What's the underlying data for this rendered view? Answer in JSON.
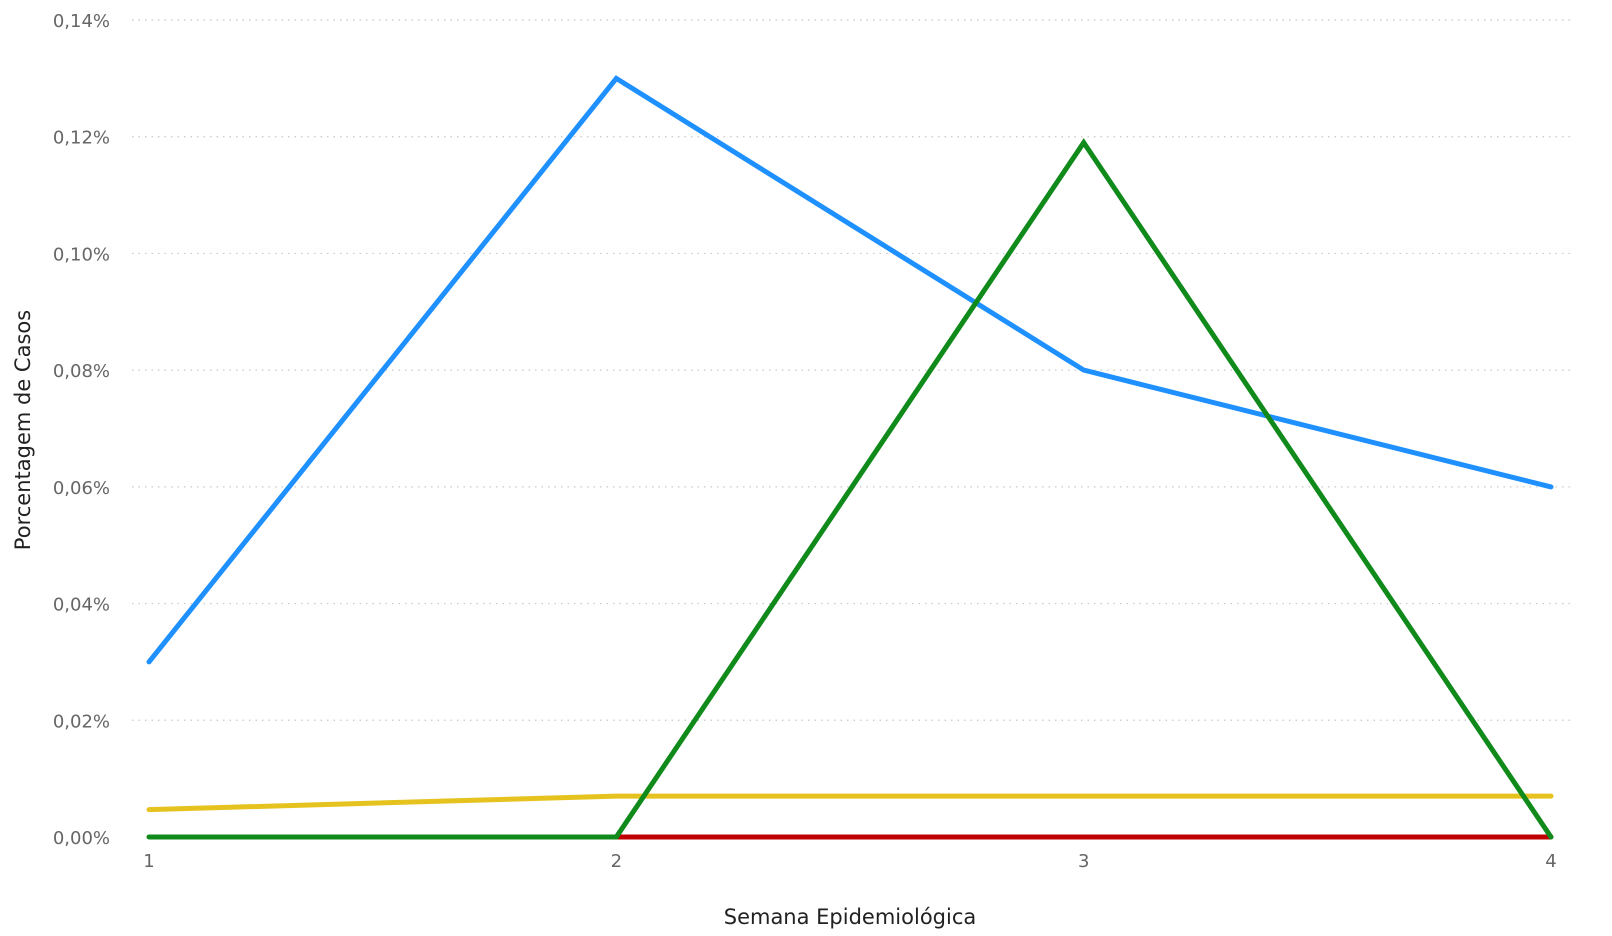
{
  "chart_data": {
    "type": "line",
    "xlabel": "Semana Epidemiológica",
    "ylabel": "Porcentagem de Casos",
    "x": [
      1,
      2,
      3,
      4
    ],
    "x_tick_labels": [
      "1",
      "2",
      "3",
      "4"
    ],
    "ylim": [
      0,
      0.14
    ],
    "y_ticks": [
      0,
      0.02,
      0.04,
      0.06,
      0.08,
      0.1,
      0.12,
      0.14
    ],
    "y_tick_labels": [
      "0,00%",
      "0,02%",
      "0,04%",
      "0,06%",
      "0,08%",
      "0,10%",
      "0,12%",
      "0,14%"
    ],
    "grid": true,
    "legend": "none",
    "series": [
      {
        "color": "#C00000",
        "values": [
          null,
          0,
          0,
          0
        ]
      },
      {
        "color": "#E6C21E",
        "values": [
          0.0047,
          0.007,
          0.007,
          0.007
        ]
      },
      {
        "color": "#1E90FF",
        "values": [
          0.03,
          0.13,
          0.08,
          0.06
        ]
      },
      {
        "color": "#108A1A",
        "values": [
          0,
          0,
          0.119,
          0
        ]
      }
    ]
  }
}
